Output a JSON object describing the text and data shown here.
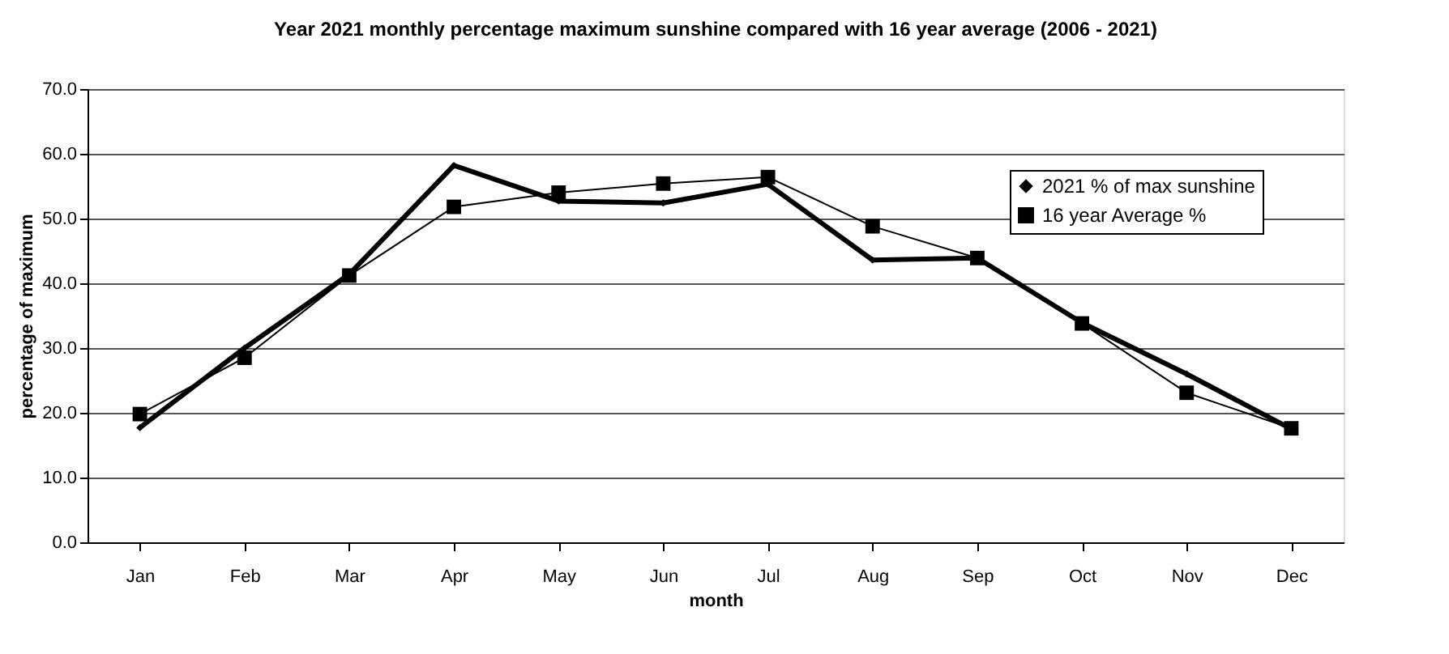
{
  "chart_data": {
    "type": "line",
    "title": "Year 2021 monthly percentage maximum sunshine compared with 16 year average (2006 - 2021)",
    "xlabel": "month",
    "ylabel": "percentage of maximum",
    "categories": [
      "Jan",
      "Feb",
      "Mar",
      "Apr",
      "May",
      "Jun",
      "Jul",
      "Aug",
      "Sep",
      "Oct",
      "Nov",
      "Dec"
    ],
    "series": [
      {
        "name": "2021 % of max sunshine",
        "color": "#000000",
        "marker": "diamond",
        "values": [
          17.7,
          30.0,
          41.4,
          58.2,
          52.7,
          52.4,
          55.3,
          43.6,
          43.9,
          33.9,
          26.0,
          17.5
        ]
      },
      {
        "name": "16 year Average %",
        "color": "#000000",
        "marker": "square",
        "values": [
          19.8,
          28.5,
          41.2,
          51.8,
          54.0,
          55.4,
          56.4,
          48.8,
          43.9,
          33.8,
          23.1,
          17.6
        ]
      }
    ],
    "ylim": [
      0,
      70
    ],
    "yticks": [
      {
        "value": 0,
        "label": "0.0"
      },
      {
        "value": 10,
        "label": "10.0"
      },
      {
        "value": 20,
        "label": "20.0"
      },
      {
        "value": 30,
        "label": "30.0"
      },
      {
        "value": 40,
        "label": "40.0"
      },
      {
        "value": 50,
        "label": "50.0"
      },
      {
        "value": 60,
        "label": "60.0"
      },
      {
        "value": 70,
        "label": "70.0"
      }
    ],
    "grid": "y",
    "legend": "top right",
    "line_style": "solid"
  }
}
